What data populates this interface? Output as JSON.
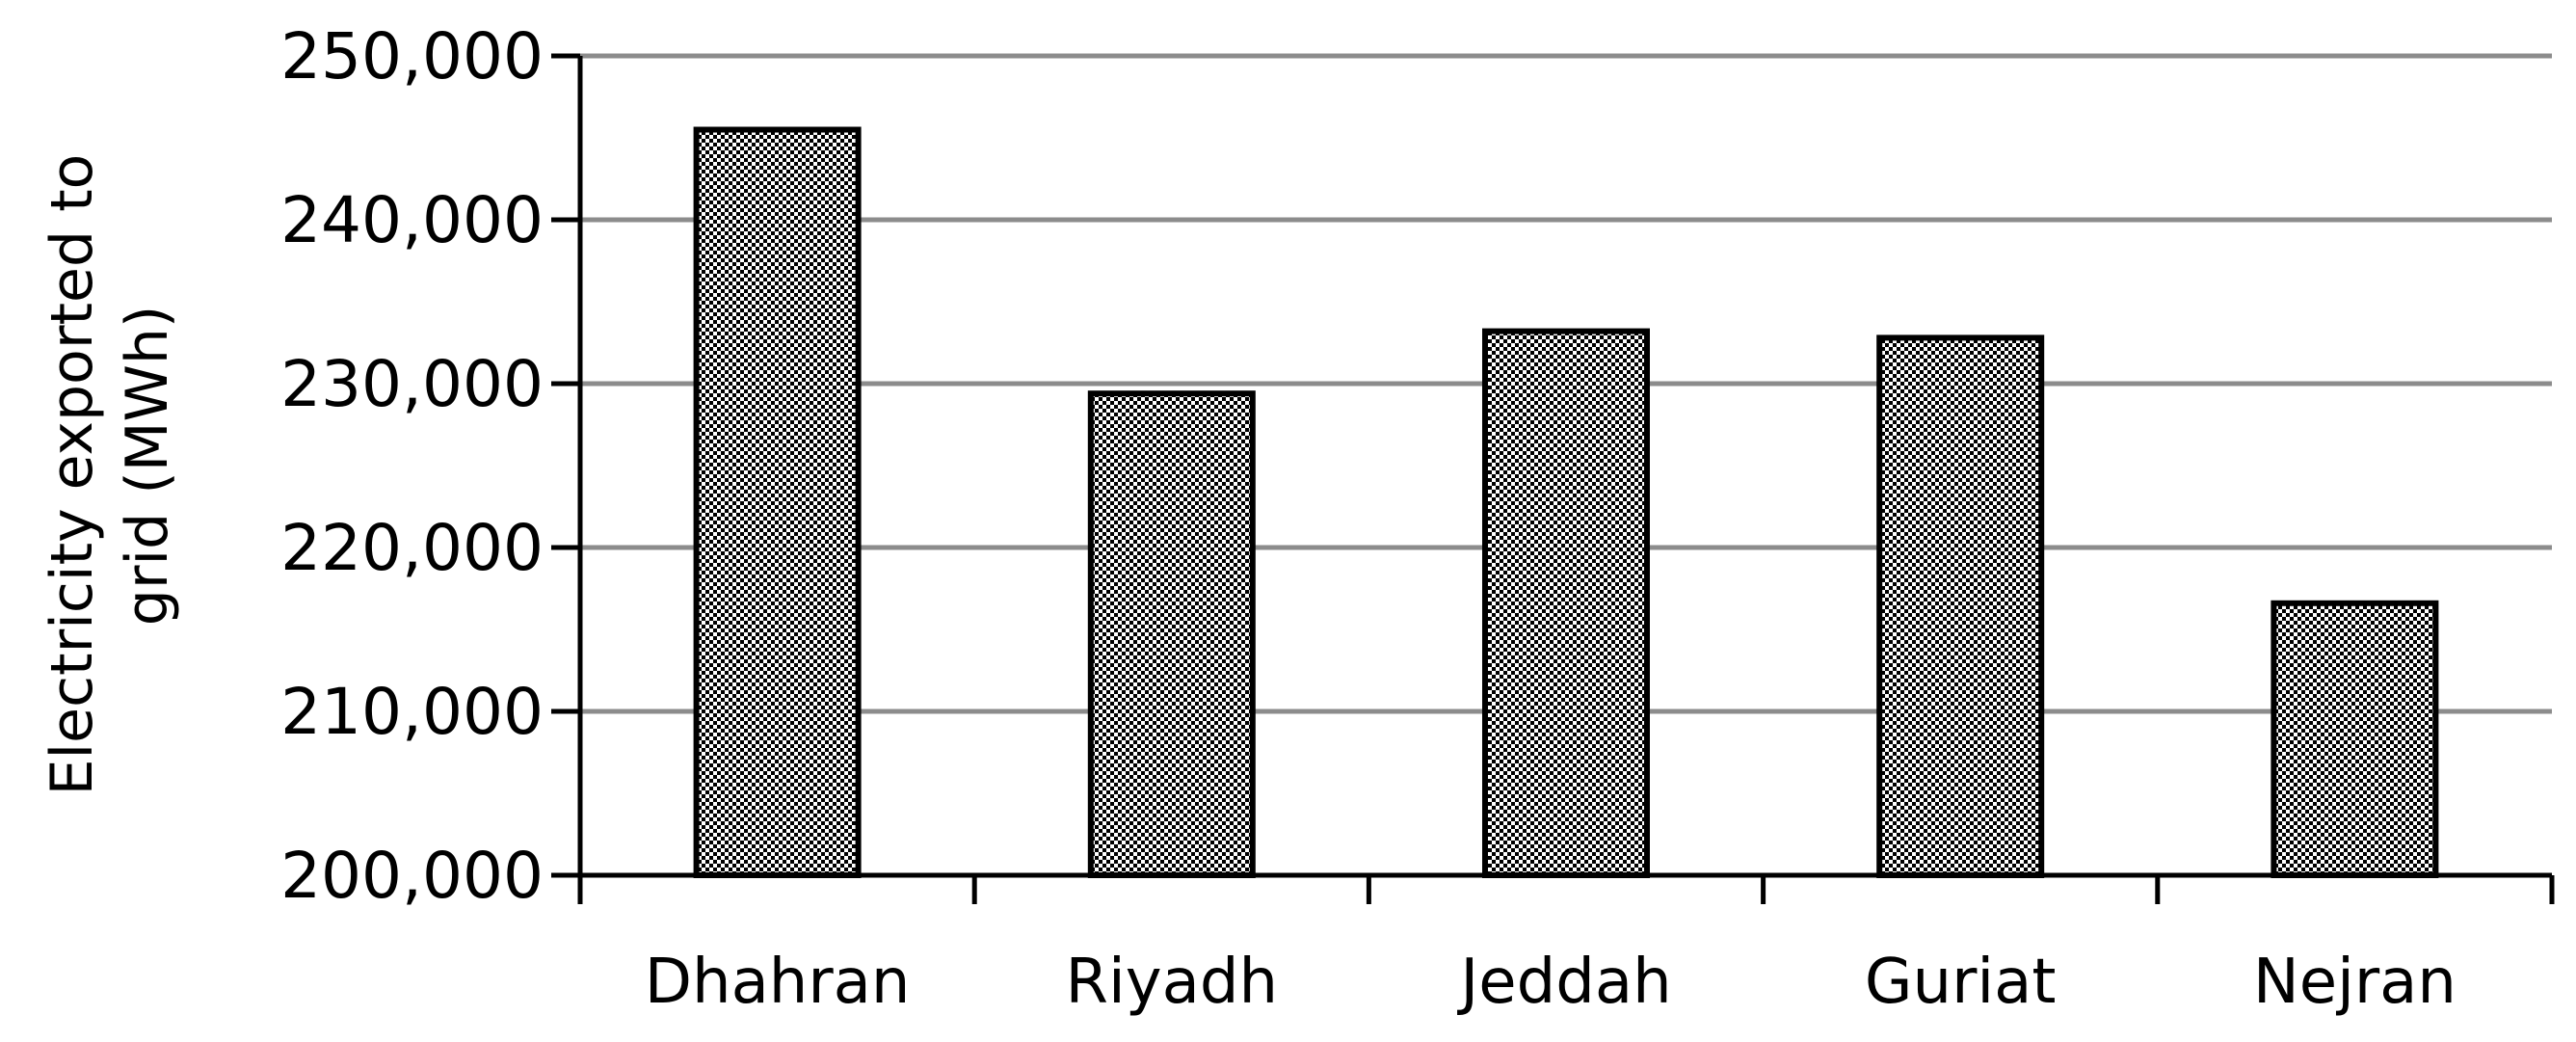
{
  "chart_data": {
    "type": "bar",
    "title": "",
    "xlabel": "",
    "ylabel_lines": [
      "Electricity exported to",
      "grid (MWh)"
    ],
    "categories": [
      "Dhahran",
      "Riyadh",
      "Jeddah",
      "Guriat",
      "Nejran"
    ],
    "values": [
      245500,
      229400,
      233200,
      232800,
      216600
    ],
    "ylim": [
      200000,
      250000
    ],
    "yticks": [
      200000,
      210000,
      220000,
      230000,
      240000,
      250000
    ],
    "ytick_labels": [
      "200,000",
      "210,000",
      "220,000",
      "230,000",
      "240,000",
      "250,000"
    ],
    "grid": true,
    "legend": "none",
    "colors": {
      "bar_fill": "#bfbfbf",
      "bar_pattern": "#000000",
      "bar_edge": "#000000",
      "gridline": "#8c8c8c",
      "axis": "#000000"
    }
  }
}
